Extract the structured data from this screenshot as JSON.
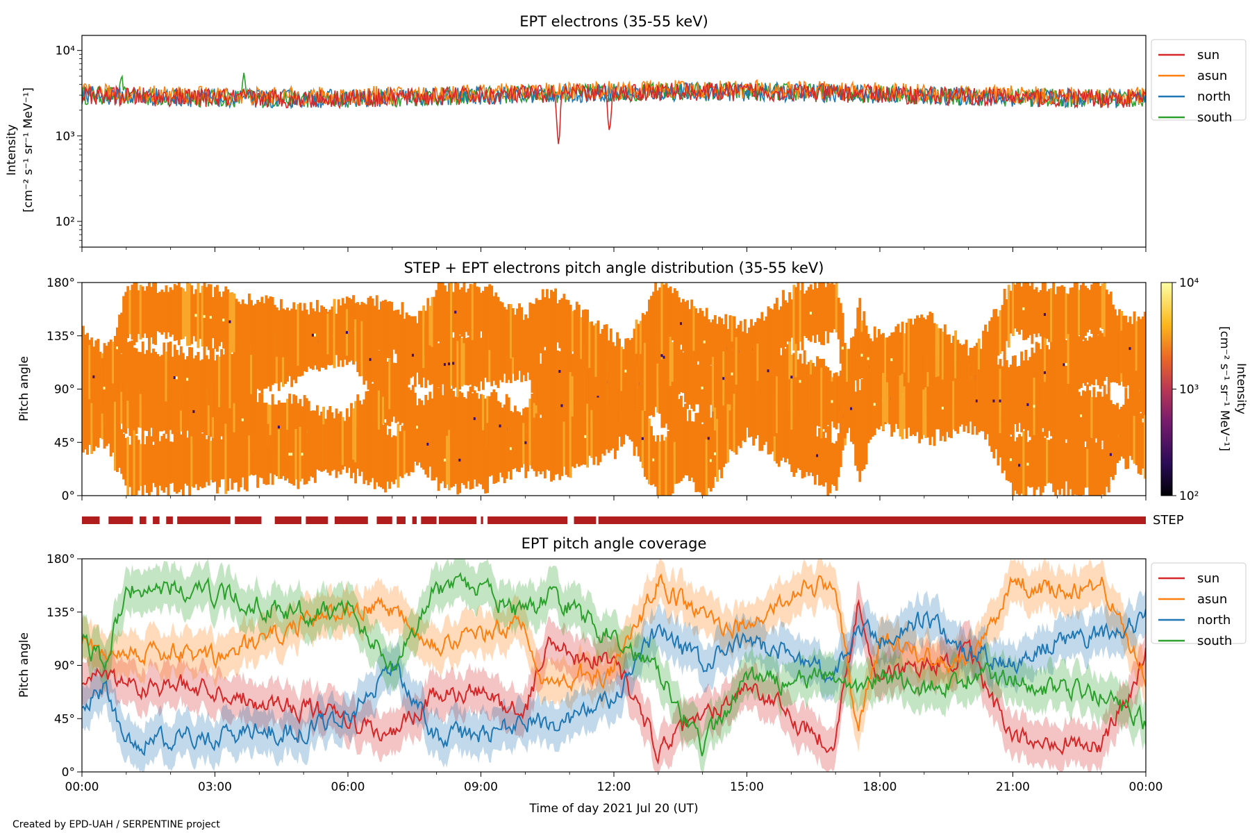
{
  "footer": "Created by EPD-UAH / SERPENTINE project",
  "colors": {
    "sun": "#d62728",
    "asun": "#ff7f0e",
    "north": "#1f77b4",
    "south": "#2ca02c",
    "step_bar": "#b11c1c"
  },
  "chart_data": [
    {
      "id": "intensity",
      "type": "line",
      "title": "EPT electrons (35-55 keV)",
      "ylabel_lines": [
        "Intensity",
        "[cm⁻² s⁻¹ sr⁻¹ MeV⁻¹]"
      ],
      "yscale": "log",
      "ylim": [
        50,
        15000
      ],
      "yticks": [
        {
          "value": 100,
          "label": "10²"
        },
        {
          "value": 1000,
          "label": "10³"
        },
        {
          "value": 10000,
          "label": "10⁴"
        }
      ],
      "xlim_hours": [
        0,
        24
      ],
      "legend_position": "right",
      "series": [
        {
          "name": "sun",
          "color": "#d62728",
          "typical": 3000,
          "dips": [
            {
              "t": 10.75,
              "value": 800
            },
            {
              "t": 11.9,
              "value": 1150
            }
          ]
        },
        {
          "name": "asun",
          "color": "#ff7f0e",
          "typical": 3200
        },
        {
          "name": "north",
          "color": "#1f77b4",
          "typical": 3000
        },
        {
          "name": "south",
          "color": "#2ca02c",
          "typical": 3000,
          "peaks": [
            {
              "t": 3.65,
              "value": 5500
            },
            {
              "t": 0.9,
              "value": 5000
            }
          ]
        }
      ]
    },
    {
      "id": "pad",
      "type": "heatmap",
      "title": "STEP + EPT electrons pitch angle distribution (35-55 keV)",
      "ylabel": "Pitch angle",
      "ylim": [
        0,
        180
      ],
      "yticks": [
        "0°",
        "45°",
        "90°",
        "135°",
        "180°"
      ],
      "colorbar": {
        "label_lines": [
          "Intensity",
          "[cm⁻² s⁻¹ sr⁻¹ MeV⁻¹]"
        ],
        "scale": "log",
        "range": [
          100,
          10000
        ],
        "ticks": [
          "10²",
          "10³",
          "10⁴"
        ],
        "colormap": "inferno"
      },
      "dominant_value": 3000
    },
    {
      "id": "step",
      "type": "bar",
      "label": "STEP",
      "availability_segments_hours": [
        [
          0.0,
          0.4
        ],
        [
          0.6,
          1.15
        ],
        [
          1.3,
          1.45
        ],
        [
          1.6,
          1.75
        ],
        [
          1.9,
          2.05
        ],
        [
          2.15,
          3.35
        ],
        [
          3.45,
          4.05
        ],
        [
          4.35,
          4.95
        ],
        [
          5.05,
          5.55
        ],
        [
          5.7,
          6.45
        ],
        [
          6.65,
          7.0
        ],
        [
          7.1,
          7.3
        ],
        [
          7.45,
          7.55
        ],
        [
          7.65,
          8.0
        ],
        [
          8.05,
          8.9
        ],
        [
          9.0,
          9.05
        ],
        [
          9.15,
          10.95
        ],
        [
          11.1,
          11.6
        ],
        [
          11.65,
          24.0
        ]
      ]
    },
    {
      "id": "coverage",
      "type": "area",
      "title": "EPT pitch angle coverage",
      "ylabel": "Pitch angle",
      "xlabel": "Time of day 2021 Jul 20 (UT)",
      "ylim": [
        0,
        180
      ],
      "yticks": [
        "0°",
        "45°",
        "90°",
        "135°",
        "180°"
      ],
      "xticks": [
        "00:00",
        "03:00",
        "06:00",
        "09:00",
        "12:00",
        "15:00",
        "18:00",
        "21:00",
        "00:00"
      ],
      "legend_position": "right",
      "series": [
        {
          "name": "sun",
          "color": "#d62728",
          "t": [
            0,
            0.5,
            1,
            2,
            3,
            4,
            5,
            6,
            7,
            8,
            9,
            10,
            10.5,
            11,
            12,
            13,
            14,
            15,
            16,
            17,
            17.5,
            18,
            19,
            20,
            21,
            22,
            23,
            24
          ],
          "values": [
            70,
            85,
            75,
            72,
            70,
            60,
            55,
            42,
            30,
            65,
            65,
            50,
            110,
            100,
            95,
            20,
            45,
            75,
            45,
            25,
            140,
            80,
            90,
            100,
            25,
            30,
            20,
            100
          ]
        },
        {
          "name": "asun",
          "color": "#ff7f0e",
          "t": [
            0,
            0.5,
            1,
            2,
            3,
            4,
            5,
            6,
            7,
            8,
            9,
            10,
            10.5,
            11,
            12,
            13,
            14,
            15,
            16,
            17,
            17.5,
            18,
            19,
            20,
            21,
            22,
            23,
            24
          ],
          "values": [
            115,
            100,
            105,
            100,
            95,
            110,
            125,
            140,
            140,
            110,
            115,
            125,
            70,
            80,
            85,
            160,
            130,
            120,
            150,
            160,
            30,
            110,
            100,
            90,
            160,
            150,
            160,
            80
          ]
        },
        {
          "name": "north",
          "color": "#1f77b4",
          "t": [
            0,
            0.5,
            1,
            2,
            3,
            4,
            5,
            6,
            7,
            8,
            9,
            10,
            10.5,
            11,
            12,
            13,
            14,
            15,
            16,
            17,
            17.5,
            18,
            19,
            20,
            21,
            22,
            23,
            24
          ],
          "values": [
            60,
            70,
            25,
            28,
            30,
            35,
            35,
            48,
            90,
            30,
            30,
            45,
            40,
            45,
            60,
            120,
            90,
            110,
            100,
            80,
            120,
            110,
            130,
            100,
            90,
            110,
            115,
            130
          ]
        },
        {
          "name": "south",
          "color": "#2ca02c",
          "t": [
            0,
            0.5,
            1,
            2,
            3,
            4,
            5,
            6,
            7,
            8,
            9,
            10,
            10.5,
            11,
            12,
            13,
            14,
            15,
            16,
            17,
            17.5,
            18,
            19,
            20,
            21,
            22,
            23,
            24
          ],
          "values": [
            110,
            90,
            155,
            155,
            150,
            140,
            135,
            138,
            90,
            155,
            155,
            130,
            150,
            140,
            110,
            90,
            20,
            80,
            75,
            80,
            70,
            80,
            70,
            80,
            80,
            70,
            65,
            40
          ]
        }
      ]
    }
  ]
}
